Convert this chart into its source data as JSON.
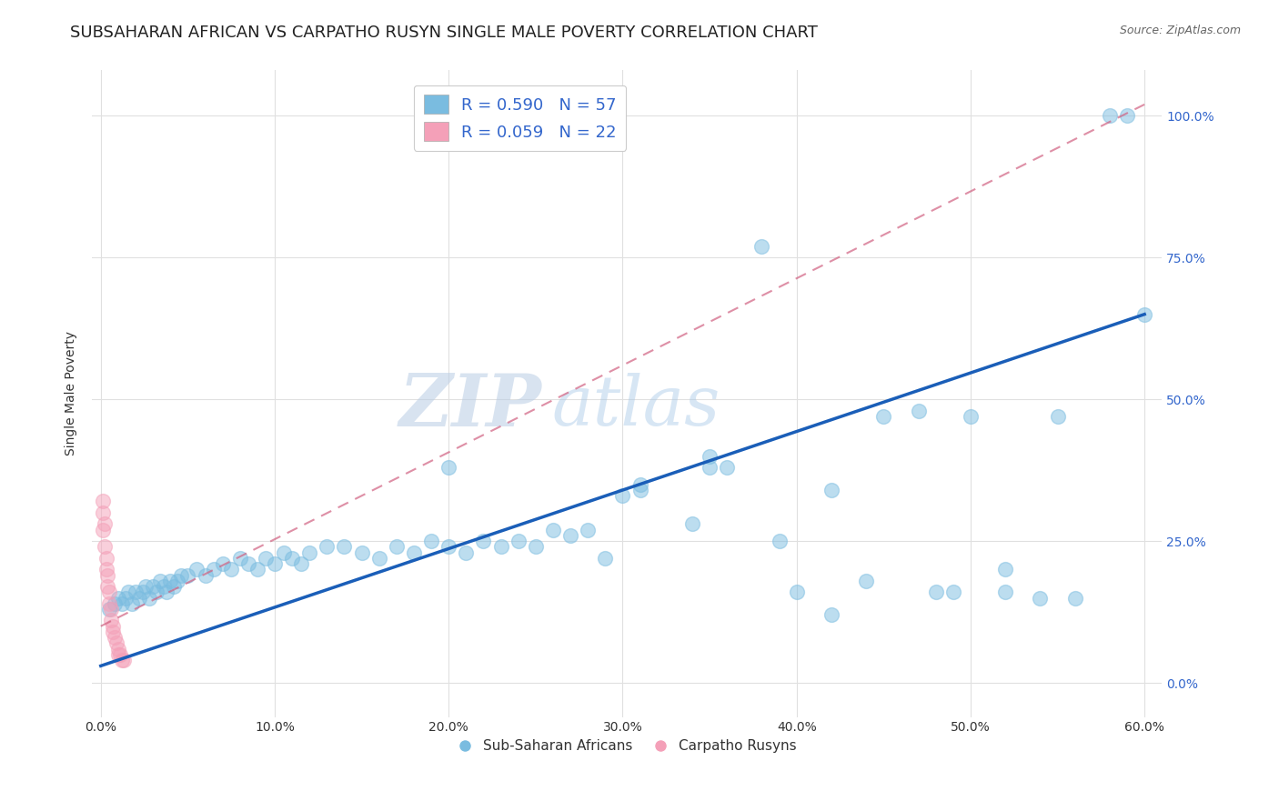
{
  "title": "SUBSAHARAN AFRICAN VS CARPATHO RUSYN SINGLE MALE POVERTY CORRELATION CHART",
  "source": "Source: ZipAtlas.com",
  "xlabel_ticks": [
    "0.0%",
    "10.0%",
    "20.0%",
    "30.0%",
    "40.0%",
    "50.0%",
    "60.0%"
  ],
  "ylabel_ticks": [
    "0.0%",
    "25.0%",
    "50.0%",
    "75.0%",
    "100.0%"
  ],
  "xlim": [
    -0.005,
    0.61
  ],
  "ylim": [
    -0.06,
    1.08
  ],
  "ylabel": "Single Male Poverty",
  "blue_color": "#7abce0",
  "pink_color": "#f4a0b8",
  "trendline_blue": "#1a5eb8",
  "trendline_pink": "#d06080",
  "watermark_zip": "ZIP",
  "watermark_atlas": "atlas",
  "blue_scatter_x": [
    0.005,
    0.008,
    0.01,
    0.012,
    0.014,
    0.016,
    0.018,
    0.02,
    0.022,
    0.024,
    0.026,
    0.028,
    0.03,
    0.032,
    0.034,
    0.036,
    0.038,
    0.04,
    0.042,
    0.044,
    0.046,
    0.05,
    0.055,
    0.06,
    0.065,
    0.07,
    0.075,
    0.08,
    0.085,
    0.09,
    0.095,
    0.1,
    0.105,
    0.11,
    0.115,
    0.12,
    0.13,
    0.14,
    0.15,
    0.16,
    0.17,
    0.18,
    0.19,
    0.2,
    0.21,
    0.22,
    0.23,
    0.24,
    0.25,
    0.26,
    0.27,
    0.28,
    0.29,
    0.2,
    0.31,
    0.35,
    0.38
  ],
  "blue_scatter_y": [
    0.13,
    0.14,
    0.15,
    0.14,
    0.15,
    0.16,
    0.14,
    0.16,
    0.15,
    0.16,
    0.17,
    0.15,
    0.17,
    0.16,
    0.18,
    0.17,
    0.16,
    0.18,
    0.17,
    0.18,
    0.19,
    0.19,
    0.2,
    0.19,
    0.2,
    0.21,
    0.2,
    0.22,
    0.21,
    0.2,
    0.22,
    0.21,
    0.23,
    0.22,
    0.21,
    0.23,
    0.24,
    0.24,
    0.23,
    0.22,
    0.24,
    0.23,
    0.25,
    0.24,
    0.23,
    0.25,
    0.24,
    0.25,
    0.24,
    0.27,
    0.26,
    0.27,
    0.22,
    0.38,
    0.34,
    0.38,
    0.77
  ],
  "blue_scatter_x2": [
    0.3,
    0.31,
    0.34,
    0.36,
    0.39,
    0.4,
    0.42,
    0.44,
    0.45,
    0.47,
    0.49,
    0.5,
    0.52,
    0.54,
    0.55,
    0.58,
    0.59,
    0.6,
    0.35,
    0.42,
    0.48,
    0.52,
    0.56
  ],
  "blue_scatter_y2": [
    0.33,
    0.35,
    0.28,
    0.38,
    0.25,
    0.16,
    0.12,
    0.18,
    0.47,
    0.48,
    0.16,
    0.47,
    0.2,
    0.15,
    0.47,
    1.0,
    1.0,
    0.65,
    0.4,
    0.34,
    0.16,
    0.16,
    0.15
  ],
  "pink_scatter_x": [
    0.001,
    0.001,
    0.002,
    0.002,
    0.003,
    0.003,
    0.004,
    0.004,
    0.005,
    0.005,
    0.006,
    0.006,
    0.007,
    0.007,
    0.008,
    0.009,
    0.01,
    0.01,
    0.011,
    0.012,
    0.013,
    0.001
  ],
  "pink_scatter_y": [
    0.3,
    0.27,
    0.28,
    0.24,
    0.22,
    0.2,
    0.19,
    0.17,
    0.16,
    0.14,
    0.13,
    0.11,
    0.1,
    0.09,
    0.08,
    0.07,
    0.06,
    0.05,
    0.05,
    0.04,
    0.04,
    0.32
  ],
  "blue_trendline_x": [
    0.0,
    0.6
  ],
  "blue_trendline_y": [
    0.03,
    0.65
  ],
  "pink_trendline_x": [
    0.0,
    0.6
  ],
  "pink_trendline_y": [
    0.1,
    1.02
  ],
  "grid_color": "#e0e0e0",
  "title_fontsize": 13,
  "label_fontsize": 10
}
